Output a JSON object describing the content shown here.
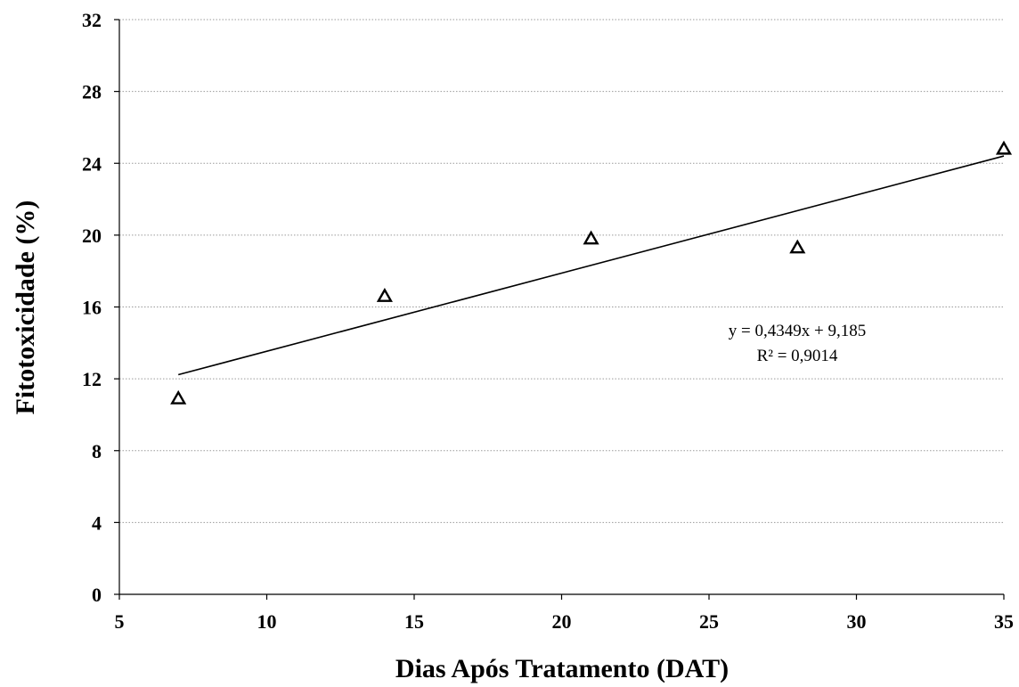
{
  "chart_data": {
    "type": "scatter",
    "title": "",
    "xlabel": "Dias Após Tratamento (DAT)",
    "ylabel": "Fitotoxicidade (%)",
    "xlim": [
      5,
      35
    ],
    "ylim": [
      0,
      32
    ],
    "xticks": [
      5,
      10,
      15,
      20,
      25,
      30,
      35
    ],
    "yticks": [
      0,
      4,
      8,
      12,
      16,
      20,
      24,
      28,
      32
    ],
    "grid": "horizontal dotted",
    "legend": "none",
    "marker": "open-triangle",
    "series": [
      {
        "x": [
          7,
          14,
          21,
          28,
          35
        ],
        "y": [
          10.9,
          16.6,
          19.8,
          19.3,
          24.8
        ]
      }
    ],
    "trendline": {
      "type": "linear",
      "slope": 0.4349,
      "intercept": 9.185,
      "x_range": [
        7,
        35
      ],
      "equation_label": "y = 0,4349x + 9,185",
      "r2_label": "R² = 0,9014"
    }
  }
}
